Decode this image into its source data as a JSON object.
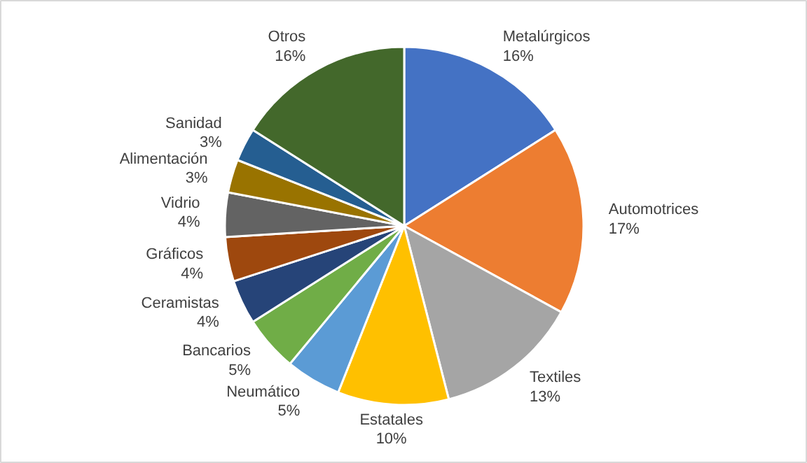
{
  "chart_data": {
    "type": "pie",
    "categories": [
      "Metalúrgicos",
      "Automotrices",
      "Textiles",
      "Estatales",
      "Neumático",
      "Bancarios",
      "Ceramistas",
      "Gráficos",
      "Vidrio",
      "Alimentación",
      "Sanidad",
      "Otros"
    ],
    "values": [
      16,
      17,
      13,
      10,
      5,
      5,
      4,
      4,
      4,
      3,
      3,
      16
    ],
    "colors": [
      "#4472c4",
      "#ed7d31",
      "#a5a5a5",
      "#ffc000",
      "#5b9bd5",
      "#70ad47",
      "#264478",
      "#9e480e",
      "#636363",
      "#997300",
      "#255e91",
      "#43682b"
    ],
    "value_labels": [
      "16%",
      "17%",
      "13%",
      "10%",
      "5%",
      "5%",
      "4%",
      "4%",
      "4%",
      "3%",
      "3%",
      "16%"
    ]
  }
}
